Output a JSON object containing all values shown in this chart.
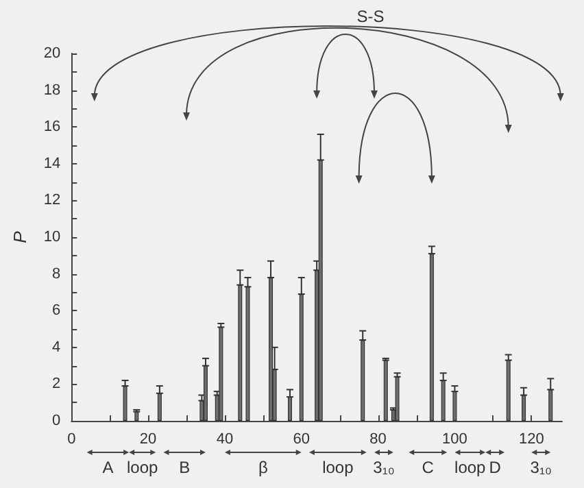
{
  "chart_data": {
    "type": "bar",
    "ylabel": "P",
    "x": [
      14,
      17,
      23,
      34,
      35,
      38,
      39,
      44,
      46,
      52,
      53,
      57,
      60,
      64,
      65,
      76,
      82,
      84,
      85,
      94,
      97,
      100,
      114,
      118,
      125
    ],
    "values": [
      1.9,
      0.5,
      1.5,
      1.1,
      3.0,
      1.4,
      5.1,
      7.4,
      7.3,
      7.8,
      2.8,
      1.3,
      6.9,
      8.2,
      14.2,
      4.4,
      3.3,
      0.6,
      2.4,
      9.1,
      2.2,
      1.6,
      3.3,
      1.4,
      1.7
    ],
    "errors": [
      [
        1.9,
        2.2
      ],
      [
        0.5,
        0.6
      ],
      [
        1.5,
        1.9
      ],
      [
        1.1,
        1.4
      ],
      [
        3.0,
        3.4
      ],
      [
        1.4,
        1.6
      ],
      [
        5.1,
        5.3
      ],
      [
        7.4,
        8.2
      ],
      [
        7.3,
        7.8
      ],
      [
        7.8,
        8.7
      ],
      [
        2.8,
        4.0
      ],
      [
        1.3,
        1.7
      ],
      [
        6.9,
        7.8
      ],
      [
        8.2,
        8.7
      ],
      [
        14.2,
        15.6
      ],
      [
        4.4,
        4.9
      ],
      [
        3.3,
        3.4
      ],
      [
        0.6,
        0.7
      ],
      [
        2.4,
        2.6
      ],
      [
        9.1,
        9.5
      ],
      [
        2.2,
        2.6
      ],
      [
        1.6,
        1.9
      ],
      [
        3.3,
        3.6
      ],
      [
        1.4,
        1.8
      ],
      [
        1.7,
        2.3
      ]
    ],
    "color": "#6e6e6e",
    "xlim": [
      0,
      128
    ],
    "xticks": [
      0,
      20,
      40,
      60,
      80,
      100,
      120
    ],
    "ylim": [
      0,
      20
    ],
    "yticks": [
      0,
      2,
      4,
      6,
      8,
      10,
      12,
      14,
      16,
      18,
      20
    ],
    "grid": false,
    "annotations": [
      "S-S",
      "A",
      "loop",
      "B",
      "β",
      "loop",
      "3₁₀",
      "C",
      "loop",
      "D",
      "3₁₀"
    ]
  }
}
